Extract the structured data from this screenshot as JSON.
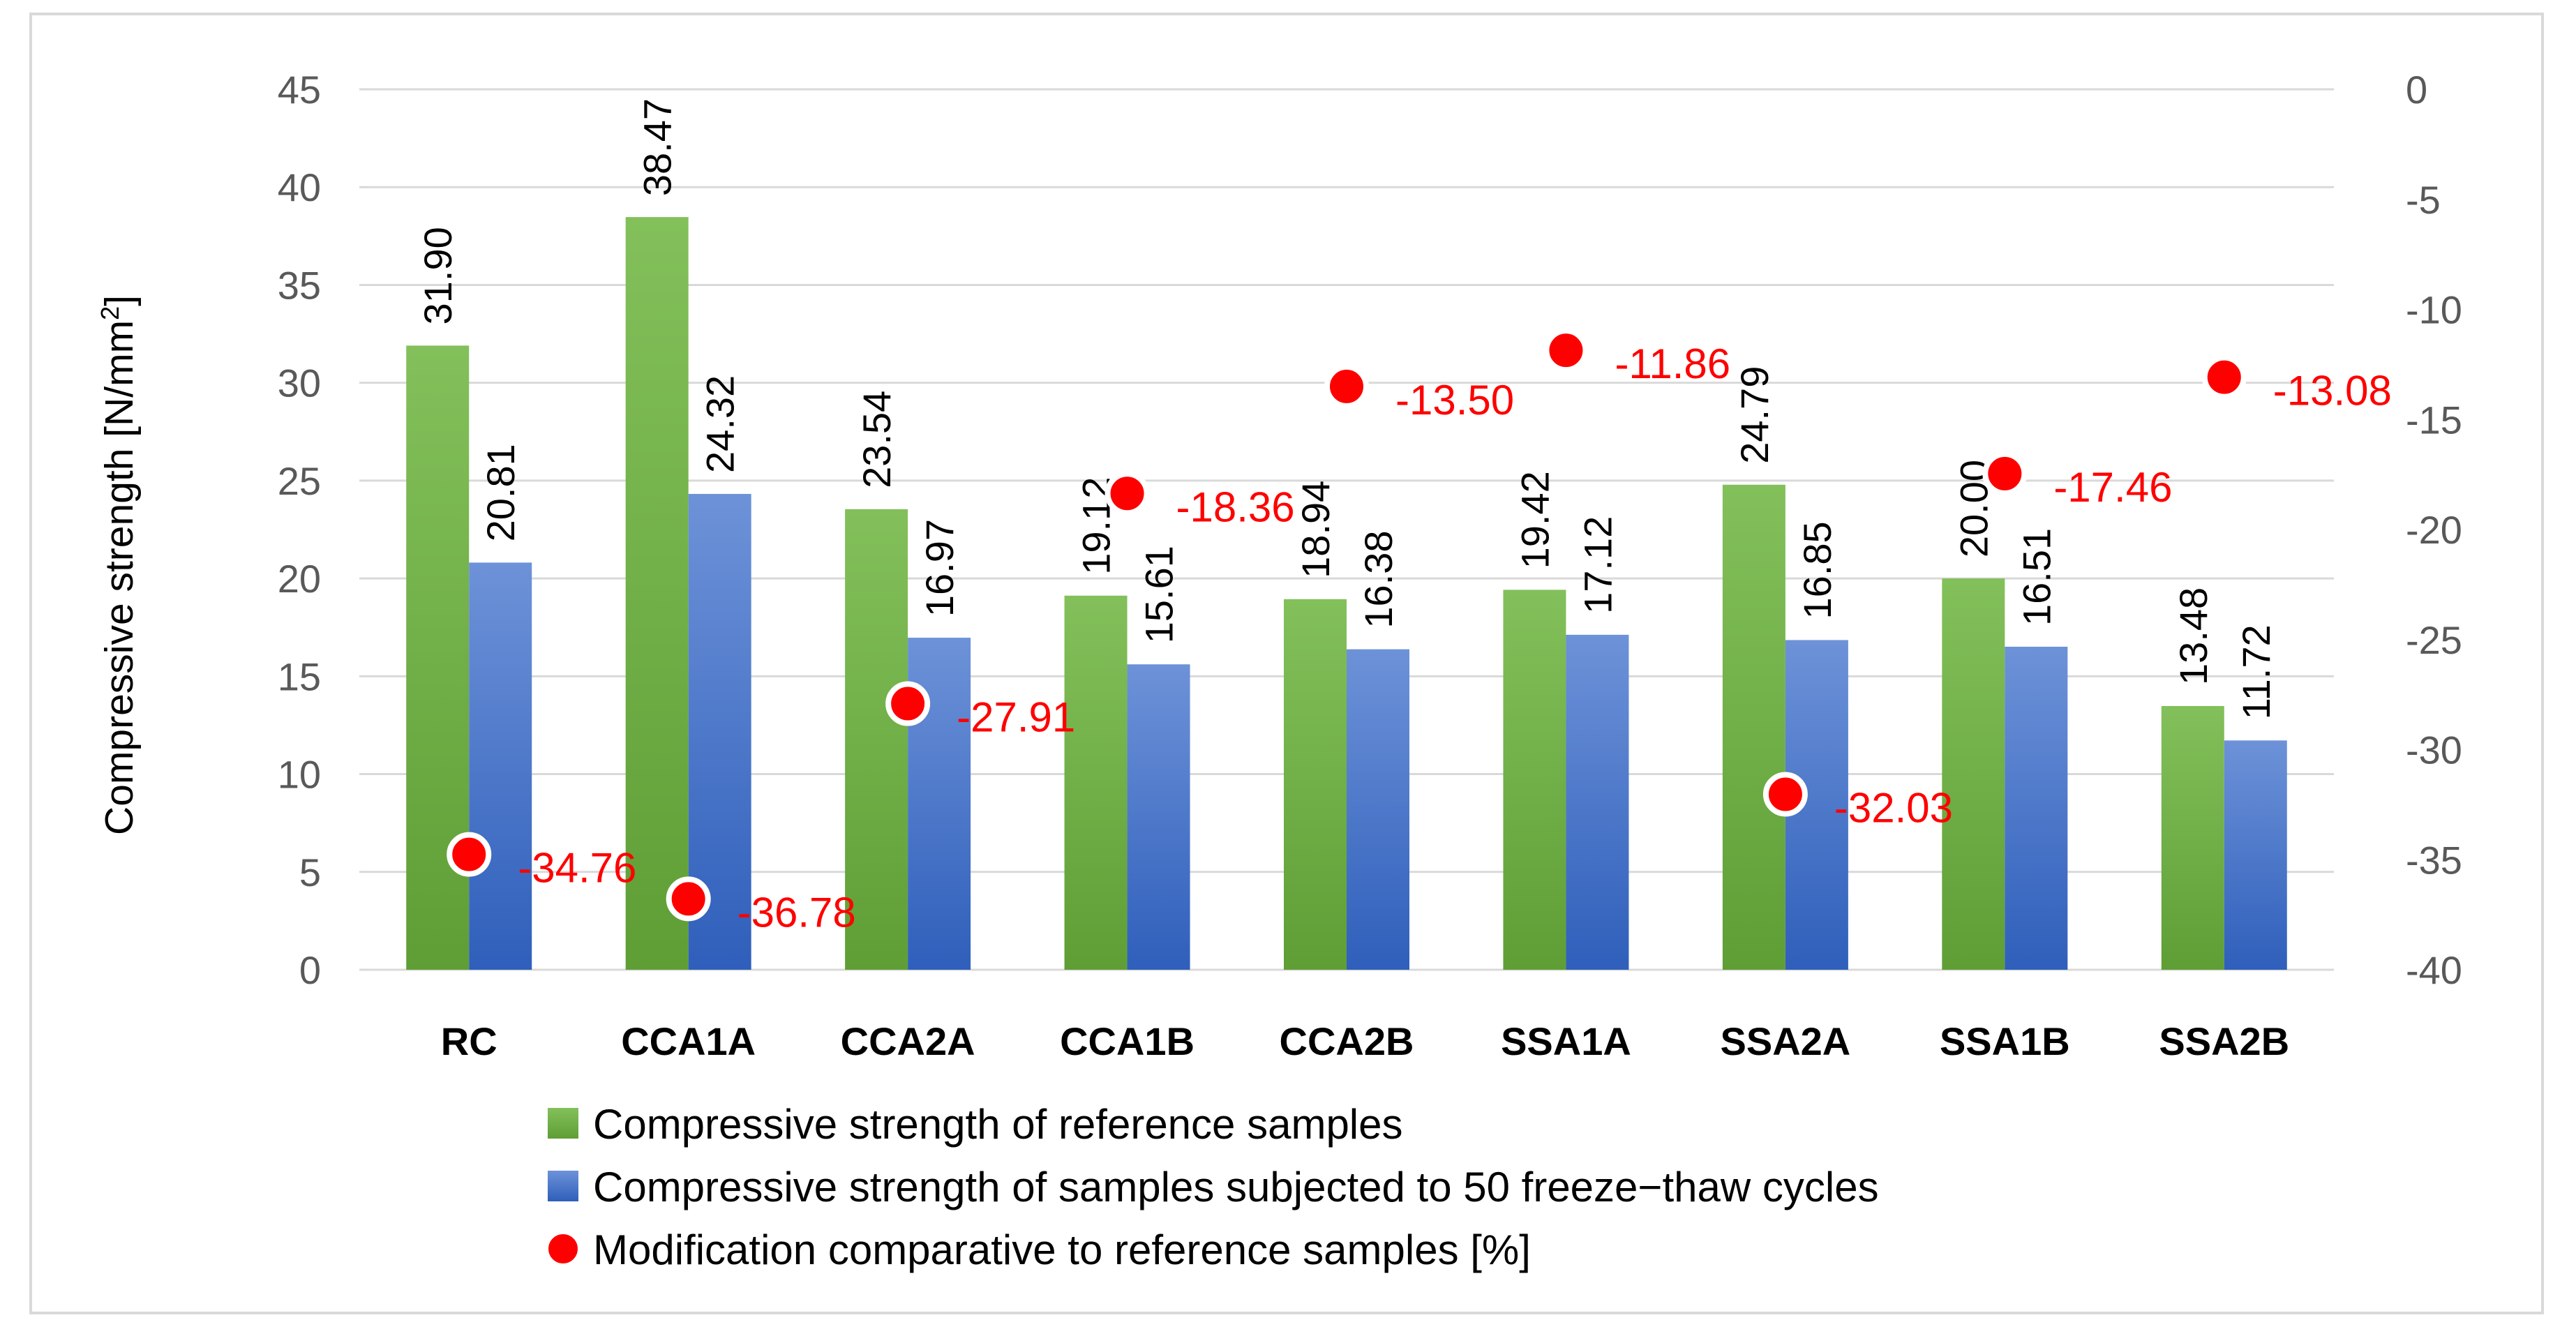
{
  "chart_data": {
    "type": "bar",
    "title": "",
    "categories": [
      "RC",
      "CCA1A",
      "CCA2A",
      "CCA1B",
      "CCA2B",
      "SSA1A",
      "SSA2A",
      "SSA1B",
      "SSA2B"
    ],
    "ylabel": "Compressive strength [N/mm",
    "ylabel_superscript": "2",
    "ylabel_close": "]",
    "ylim": [
      0,
      45
    ],
    "yticks": [
      0,
      5,
      10,
      15,
      20,
      25,
      30,
      35,
      40,
      45
    ],
    "y2lim": [
      -40,
      0
    ],
    "y2ticks": [
      0,
      -5,
      -10,
      -15,
      -20,
      -25,
      -30,
      -35,
      -40
    ],
    "grid": true,
    "legend_position": "bottom",
    "series": [
      {
        "name": "Compressive strength of reference samples",
        "axis": "left",
        "kind": "bar",
        "color": "#70ad47",
        "values": [
          31.9,
          38.47,
          23.54,
          19.12,
          18.94,
          19.42,
          24.79,
          20.0,
          13.48
        ],
        "labels": [
          "31.90",
          "38.47",
          "23.54",
          "19.12",
          "18.94",
          "19.42",
          "24.79",
          "20.00",
          "13.48"
        ]
      },
      {
        "name": "Compressive strength of samples subjected to 50 freeze−thaw cycles",
        "axis": "left",
        "kind": "bar",
        "color": "#4472c4",
        "values": [
          20.81,
          24.32,
          16.97,
          15.61,
          16.38,
          17.12,
          16.85,
          16.51,
          11.72
        ],
        "labels": [
          "20.81",
          "24.32",
          "16.97",
          "15.61",
          "16.38",
          "17.12",
          "16.85",
          "16.51",
          "11.72"
        ]
      },
      {
        "name": "Modification comparative to reference samples  [%]",
        "axis": "right",
        "kind": "scatter",
        "color": "#ff0000",
        "values": [
          -34.76,
          -36.78,
          -27.91,
          -18.36,
          -13.5,
          -11.86,
          -32.03,
          -17.46,
          -13.08
        ],
        "labels": [
          "-34.76",
          "-36.78",
          "-27.91",
          "-18.36",
          "-13.50",
          "-11.86",
          "-32.03",
          "-17.46",
          "-13.08"
        ]
      }
    ]
  }
}
